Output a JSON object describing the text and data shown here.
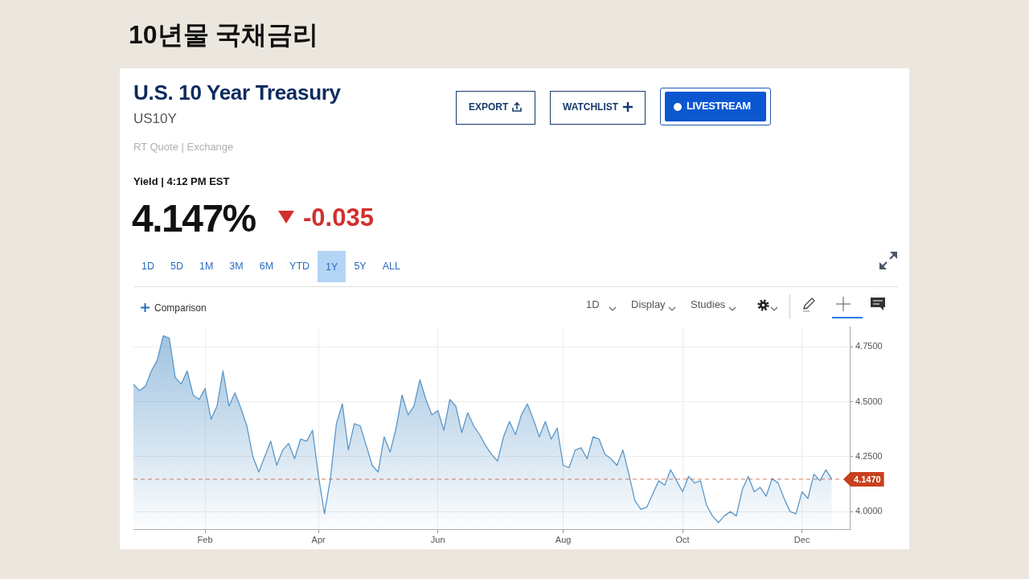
{
  "chart_data": {
    "type": "area",
    "title": "10년물 국채금리",
    "subtitle": "U.S. 10 Year Treasury",
    "annotations": [
      "US10Y",
      "RT Quote | Exchange",
      "Yield | 4:12 PM EST",
      "4.147%",
      "-0.035",
      "EXPORT",
      "WATCHLIST",
      "LIVESTREAM",
      "1D",
      "5D",
      "1M",
      "3M",
      "6M",
      "YTD",
      "1Y",
      "5Y",
      "ALL",
      "Comparison",
      "1D",
      "Display",
      "Studies"
    ],
    "categories": [
      null,
      null,
      null,
      null,
      null,
      null,
      null,
      null,
      null,
      null,
      null,
      null,
      "Feb",
      null,
      null,
      null,
      null,
      null,
      null,
      null,
      null,
      null,
      null,
      null,
      null,
      null,
      null,
      null,
      null,
      null,
      null,
      "Apr",
      null,
      null,
      null,
      null,
      null,
      null,
      null,
      null,
      null,
      null,
      null,
      null,
      null,
      null,
      null,
      null,
      null,
      null,
      null,
      "Jun",
      null,
      null,
      null,
      null,
      null,
      null,
      null,
      null,
      null,
      null,
      null,
      null,
      null,
      null,
      null,
      null,
      null,
      null,
      null,
      null,
      "Aug",
      null,
      null,
      null,
      null,
      null,
      null,
      null,
      null,
      null,
      null,
      null,
      null,
      null,
      null,
      null,
      null,
      null,
      null,
      null,
      "Oct",
      null,
      null,
      null,
      null,
      null,
      null,
      null,
      null,
      null,
      null,
      null,
      null,
      null,
      null,
      null,
      null,
      null,
      null,
      null,
      "Dec",
      null,
      null,
      null,
      null,
      null,
      null,
      null,
      null
    ],
    "values": [
      4.58,
      4.55,
      4.57,
      4.64,
      4.69,
      4.8,
      4.79,
      4.61,
      4.58,
      4.64,
      4.53,
      4.51,
      4.56,
      4.42,
      4.48,
      4.64,
      4.48,
      4.54,
      4.47,
      4.39,
      4.25,
      4.18,
      4.25,
      4.32,
      4.21,
      4.28,
      4.31,
      4.24,
      4.33,
      4.32,
      4.37,
      4.16,
      3.99,
      4.15,
      4.4,
      4.49,
      4.28,
      4.4,
      4.39,
      4.3,
      4.21,
      4.18,
      4.34,
      4.27,
      4.38,
      4.53,
      4.44,
      4.48,
      4.6,
      4.51,
      4.44,
      4.46,
      4.37,
      4.51,
      4.48,
      4.36,
      4.45,
      4.39,
      4.35,
      4.3,
      4.26,
      4.23,
      4.34,
      4.41,
      4.35,
      4.44,
      4.49,
      4.42,
      4.34,
      4.41,
      4.33,
      4.38,
      4.21,
      4.2,
      4.28,
      4.29,
      4.24,
      4.34,
      4.33,
      4.26,
      4.24,
      4.21,
      4.28,
      4.17,
      4.05,
      4.01,
      4.02,
      4.08,
      4.14,
      4.12,
      4.19,
      4.14,
      4.09,
      4.16,
      4.13,
      4.14,
      4.03,
      3.98,
      3.95,
      3.98,
      4.0,
      3.98,
      4.1,
      4.16,
      4.09,
      4.11,
      4.07,
      4.15,
      4.13,
      4.06,
      4.0,
      3.99,
      4.09,
      4.06,
      4.17,
      4.14,
      4.19,
      4.147,
      null,
      null,
      null
    ],
    "color": "#5b97c9",
    "ylim": [
      3.92,
      4.84
    ],
    "yticks": [
      {
        "value": 4,
        "label": "4.0000"
      },
      {
        "value": 4.25,
        "label": "4.2500"
      },
      {
        "value": 4.5,
        "label": "4.5000"
      },
      {
        "value": 4.75,
        "label": "4.7500"
      }
    ],
    "ref_lines": [
      {
        "axis": "y",
        "value": 4.147,
        "label": "4.1470",
        "color": "#c8401e",
        "line_style": "dashed"
      }
    ],
    "grid": true
  }
}
